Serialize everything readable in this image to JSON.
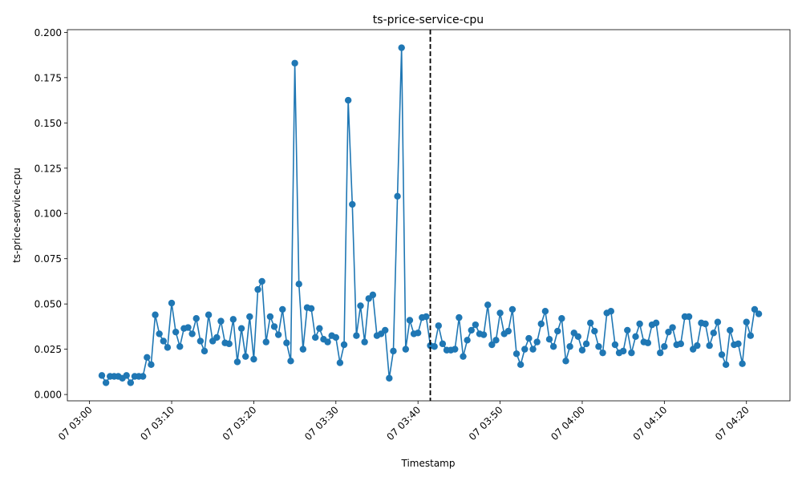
{
  "chart_data": {
    "type": "line",
    "title": "ts-price-service-cpu",
    "xlabel": "Timestamp",
    "ylabel": "ts-price-service-cpu",
    "x_start_minutes": 1.5,
    "x_step_minutes": 0.5,
    "xlim_minutes": [
      -2.7,
      85.3
    ],
    "ylim": [
      -0.0035,
      0.2015
    ],
    "x_ticks": [
      {
        "minutes": 0,
        "label": "07 03:00"
      },
      {
        "minutes": 10,
        "label": "07 03:10"
      },
      {
        "minutes": 20,
        "label": "07 03:20"
      },
      {
        "minutes": 30,
        "label": "07 03:30"
      },
      {
        "minutes": 40,
        "label": "07 03:40"
      },
      {
        "minutes": 50,
        "label": "07 03:50"
      },
      {
        "minutes": 60,
        "label": "07 04:00"
      },
      {
        "minutes": 70,
        "label": "07 04:10"
      },
      {
        "minutes": 80,
        "label": "07 04:20"
      }
    ],
    "y_ticks": [
      {
        "value": 0.0,
        "label": "0.000"
      },
      {
        "value": 0.025,
        "label": "0.025"
      },
      {
        "value": 0.05,
        "label": "0.050"
      },
      {
        "value": 0.075,
        "label": "0.075"
      },
      {
        "value": 0.1,
        "label": "0.100"
      },
      {
        "value": 0.125,
        "label": "0.125"
      },
      {
        "value": 0.15,
        "label": "0.150"
      },
      {
        "value": 0.175,
        "label": "0.175"
      },
      {
        "value": 0.2,
        "label": "0.200"
      }
    ],
    "vline_minutes": 41.5,
    "series": [
      {
        "name": "ts-price-service-cpu",
        "color": "#1f77b4",
        "values": [
          0.0105,
          0.0065,
          0.01,
          0.01,
          0.01,
          0.009,
          0.0105,
          0.0065,
          0.01,
          0.01,
          0.01,
          0.0205,
          0.0165,
          0.044,
          0.0335,
          0.0295,
          0.026,
          0.0505,
          0.0345,
          0.0265,
          0.0365,
          0.037,
          0.0335,
          0.042,
          0.0295,
          0.024,
          0.044,
          0.0295,
          0.0315,
          0.0405,
          0.0285,
          0.028,
          0.0415,
          0.018,
          0.0365,
          0.021,
          0.043,
          0.0195,
          0.058,
          0.0625,
          0.029,
          0.043,
          0.0375,
          0.033,
          0.047,
          0.0285,
          0.0185,
          0.183,
          0.061,
          0.025,
          0.048,
          0.0475,
          0.0315,
          0.0365,
          0.0305,
          0.029,
          0.0325,
          0.0315,
          0.0175,
          0.0275,
          0.1625,
          0.105,
          0.0325,
          0.049,
          0.029,
          0.053,
          0.055,
          0.0325,
          0.0335,
          0.0355,
          0.009,
          0.024,
          0.1095,
          0.1915,
          0.025,
          0.041,
          0.0335,
          0.034,
          0.0425,
          0.043,
          0.027,
          0.0265,
          0.038,
          0.028,
          0.0245,
          0.0245,
          0.025,
          0.0425,
          0.021,
          0.03,
          0.0355,
          0.0385,
          0.0335,
          0.033,
          0.0495,
          0.0275,
          0.03,
          0.045,
          0.0335,
          0.035,
          0.047,
          0.0225,
          0.0165,
          0.025,
          0.031,
          0.025,
          0.029,
          0.039,
          0.046,
          0.0305,
          0.0265,
          0.035,
          0.042,
          0.0185,
          0.0265,
          0.034,
          0.032,
          0.0245,
          0.028,
          0.0395,
          0.035,
          0.0265,
          0.023,
          0.045,
          0.046,
          0.0275,
          0.023,
          0.024,
          0.0355,
          0.023,
          0.032,
          0.039,
          0.029,
          0.0285,
          0.0385,
          0.0395,
          0.023,
          0.0265,
          0.0345,
          0.037,
          0.0275,
          0.028,
          0.043,
          0.043,
          0.025,
          0.027,
          0.0395,
          0.039,
          0.027,
          0.034,
          0.04,
          0.022,
          0.0165,
          0.0355,
          0.0275,
          0.028,
          0.017,
          0.04,
          0.0325,
          0.047,
          0.0445
        ]
      }
    ]
  }
}
